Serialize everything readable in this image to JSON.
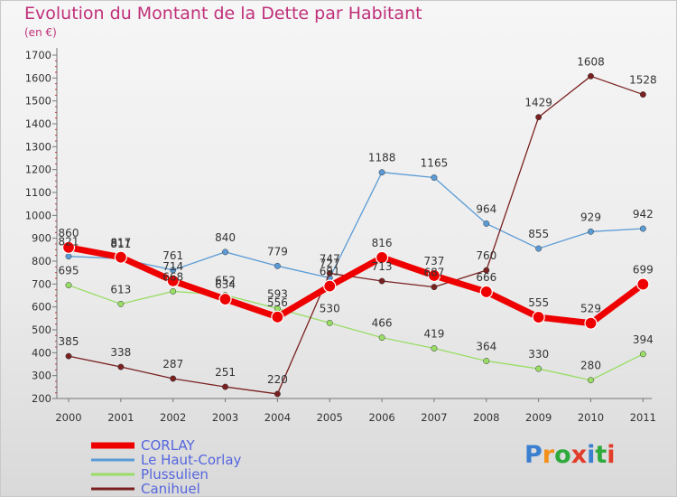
{
  "header": {
    "title": "Evolution du Montant de la Dette par Habitant",
    "subtitle": "(en €)"
  },
  "logo": {
    "text": "Proxiti",
    "colors": [
      "#3a7fd0",
      "#f2901c",
      "#2eaa3c",
      "#e23c2a",
      "#3a7fd0",
      "#2eaa3c",
      "#e23c2a"
    ]
  },
  "chart_data": {
    "type": "line",
    "x": [
      "2000",
      "2001",
      "2002",
      "2003",
      "2004",
      "2005",
      "2006",
      "2007",
      "2008",
      "2009",
      "2010",
      "2011"
    ],
    "yticks": [
      200,
      300,
      400,
      500,
      600,
      700,
      800,
      900,
      1000,
      1100,
      1200,
      1300,
      1400,
      1500,
      1600,
      1700
    ],
    "ylim": [
      200,
      1700
    ],
    "grid": false,
    "legend": "bottom-left",
    "series": [
      {
        "name": "CORLAY",
        "color": "#ee0000",
        "values": [
          860,
          817,
          714,
          634,
          556,
          691,
          816,
          737,
          666,
          555,
          529,
          699
        ]
      },
      {
        "name": "Le Haut-Corlay",
        "color": "#5b9bd5",
        "values": [
          821,
          811,
          761,
          840,
          779,
          727,
          1188,
          1165,
          964,
          855,
          929,
          942
        ]
      },
      {
        "name": "Plussulien",
        "color": "#99dd66",
        "values": [
          695,
          613,
          668,
          652,
          593,
          530,
          466,
          419,
          364,
          330,
          280,
          394
        ]
      },
      {
        "name": "Canihuel",
        "color": "#7a2020",
        "values": [
          385,
          338,
          287,
          251,
          220,
          747,
          713,
          687,
          760,
          1429,
          1608,
          1528
        ]
      }
    ]
  }
}
